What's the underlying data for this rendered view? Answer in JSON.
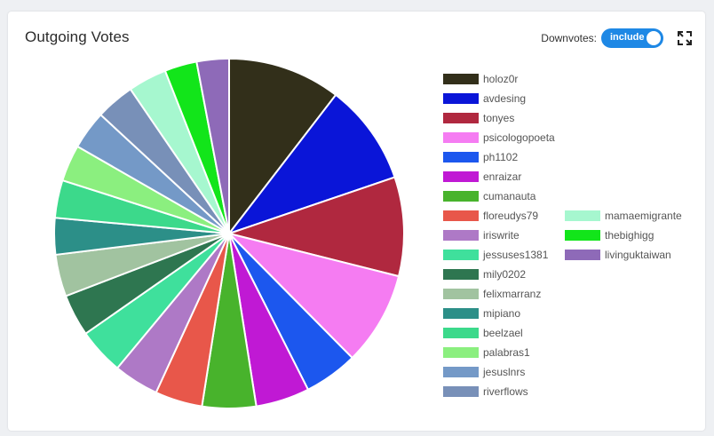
{
  "title": "Outgoing Votes",
  "downvotes": {
    "label": "Downvotes:",
    "toggle_label": "include",
    "state": "on"
  },
  "icons": {
    "expand": "fullscreen-icon"
  },
  "colors": {
    "accent": "#1e88e5"
  },
  "chart_data": {
    "type": "pie",
    "title": "Outgoing Votes",
    "legend_position": "right",
    "labels": [
      "holoz0r",
      "avdesing",
      "tonyes",
      "psicologopoeta",
      "ph1102",
      "enraizar",
      "cumanauta",
      "floreudys79",
      "iriswrite",
      "jessuses1381",
      "mily0202",
      "felixmarranz",
      "mipiano",
      "beelzael",
      "palabras1",
      "jesuslnrs",
      "riverflows",
      "mamaemigrante",
      "thebighigg",
      "livinguktaiwan"
    ],
    "values": [
      10.5,
      9.4,
      9.2,
      8.7,
      5.0,
      5.0,
      5.0,
      4.4,
      4.2,
      4.3,
      3.9,
      3.9,
      3.4,
      3.5,
      3.4,
      3.6,
      3.6,
      3.6,
      3.0,
      3.0
    ],
    "colors": [
      "#322f1a",
      "#0a15d8",
      "#b0283f",
      "#f57cf2",
      "#1c57ee",
      "#c019d4",
      "#48b32c",
      "#e8574a",
      "#ae79c6",
      "#3fe09c",
      "#2e7650",
      "#a1c3a0",
      "#2c8f88",
      "#3cd98b",
      "#8bef7f",
      "#7499c7",
      "#7890b8",
      "#a6f7cf",
      "#12e51a",
      "#8e6ab8"
    ]
  }
}
